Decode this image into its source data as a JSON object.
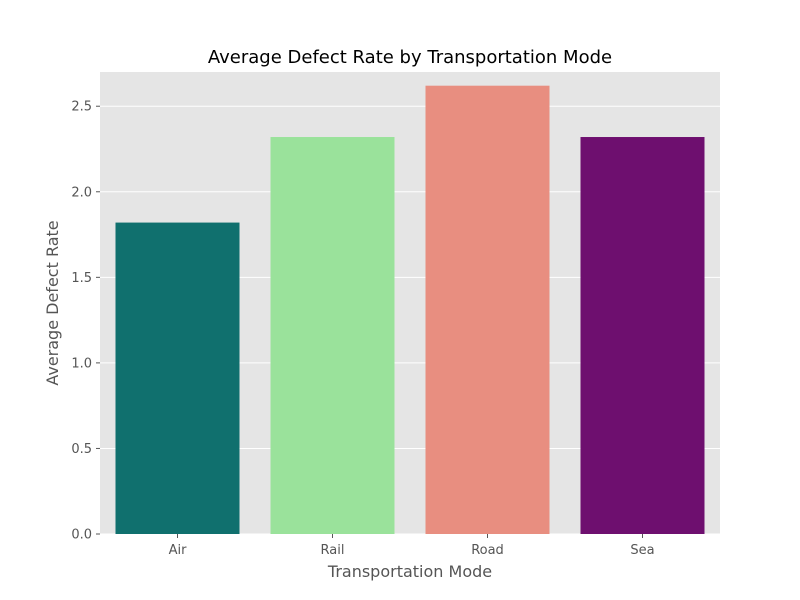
{
  "chart_data": {
    "type": "bar",
    "title": "Average Defect Rate by Transportation Mode",
    "xlabel": "Transportation Mode",
    "ylabel": "Average Defect Rate",
    "categories": [
      "Air",
      "Rail",
      "Road",
      "Sea"
    ],
    "values": [
      1.82,
      2.32,
      2.62,
      2.32
    ],
    "colors": [
      "#10706e",
      "#9ae29b",
      "#e88e80",
      "#6e0f6f"
    ],
    "ylim": [
      0,
      2.7
    ],
    "yticks": [
      0.0,
      0.5,
      1.0,
      1.5,
      2.0,
      2.5
    ],
    "ytick_labels": [
      "0.0",
      "0.5",
      "1.0",
      "1.5",
      "2.0",
      "2.5"
    ],
    "grid": true,
    "plot_background": "#e5e5e5",
    "grid_color": "#ffffff"
  }
}
